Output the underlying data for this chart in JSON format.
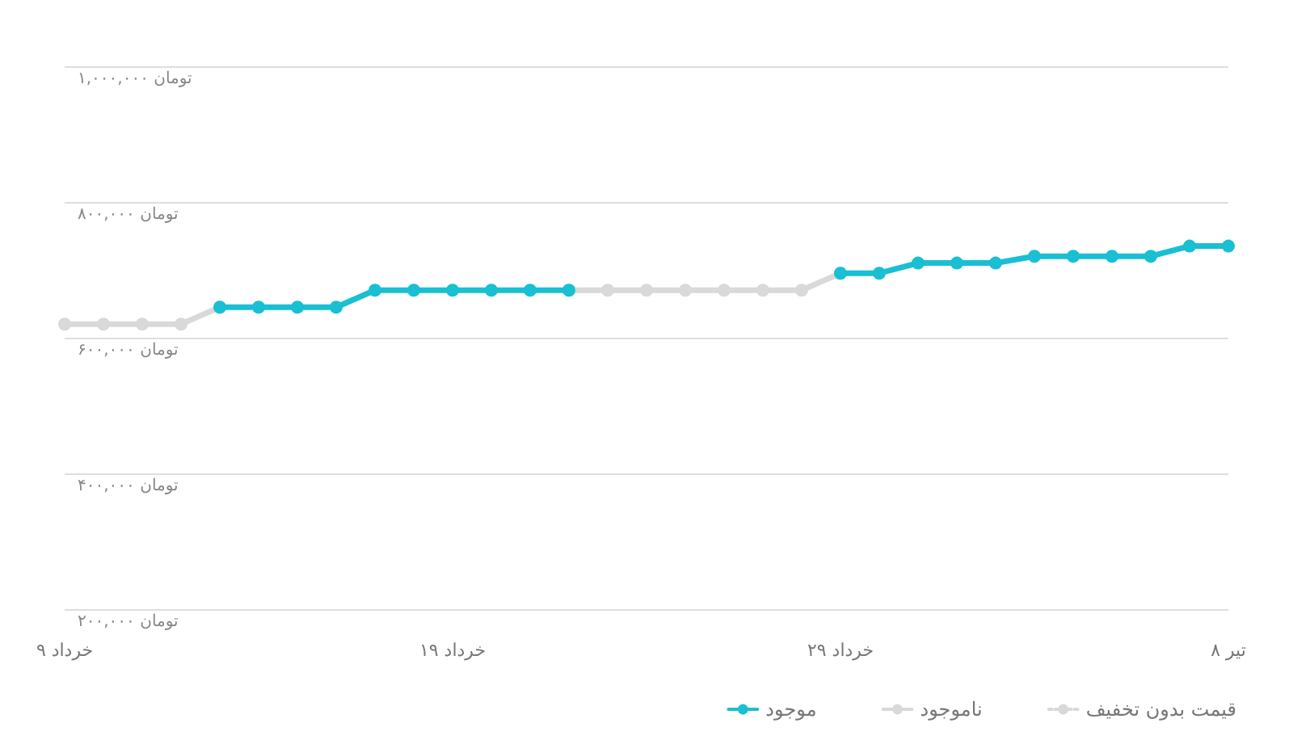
{
  "chart_data": {
    "type": "line",
    "categories": [
      "۹ خرداد",
      null,
      null,
      null,
      null,
      null,
      null,
      null,
      null,
      null,
      "۱۹ خرداد",
      null,
      null,
      null,
      null,
      null,
      null,
      null,
      null,
      null,
      "۲۹ خرداد",
      null,
      null,
      null,
      null,
      null,
      null,
      null,
      null,
      null,
      "۸ تیر"
    ],
    "series": [
      {
        "name": "موجود",
        "color": "#19bfd3",
        "line_style": "solid",
        "values": [
          null,
          null,
          null,
          null,
          645000,
          645000,
          645000,
          645000,
          670000,
          670000,
          670000,
          670000,
          670000,
          670000,
          null,
          null,
          null,
          null,
          null,
          null,
          695000,
          695000,
          710000,
          710000,
          710000,
          720000,
          720000,
          720000,
          720000,
          735000,
          735000
        ]
      },
      {
        "name": "ناموجود",
        "color": "#d9d9d9",
        "line_style": "solid",
        "values": [
          620000,
          620000,
          620000,
          620000,
          645000,
          null,
          null,
          null,
          null,
          null,
          null,
          null,
          null,
          670000,
          670000,
          670000,
          670000,
          670000,
          670000,
          670000,
          695000,
          null,
          null,
          null,
          null,
          null,
          null,
          null,
          null,
          null,
          null
        ]
      },
      {
        "name": "قیمت بدون تخفیف",
        "color": "#d9d9d9",
        "line_style": "dotted",
        "values": [
          null,
          null,
          null,
          null,
          null,
          null,
          null,
          null,
          null,
          null,
          null,
          null,
          null,
          null,
          null,
          null,
          null,
          null,
          null,
          null,
          null,
          null,
          null,
          null,
          null,
          null,
          null,
          null,
          null,
          null,
          null
        ]
      }
    ],
    "ylim": [
      200000,
      1000000
    ],
    "yticks": [
      {
        "value": 200000,
        "label": "۲۰۰,۰۰۰ تومان"
      },
      {
        "value": 400000,
        "label": "۴۰۰,۰۰۰ تومان"
      },
      {
        "value": 600000,
        "label": "۶۰۰,۰۰۰ تومان"
      },
      {
        "value": 800000,
        "label": "۸۰۰,۰۰۰ تومان"
      },
      {
        "value": 1000000,
        "label": "۱,۰۰۰,۰۰۰ تومان"
      }
    ],
    "grid": "y",
    "legend": "bottom right",
    "marker": "circle"
  }
}
